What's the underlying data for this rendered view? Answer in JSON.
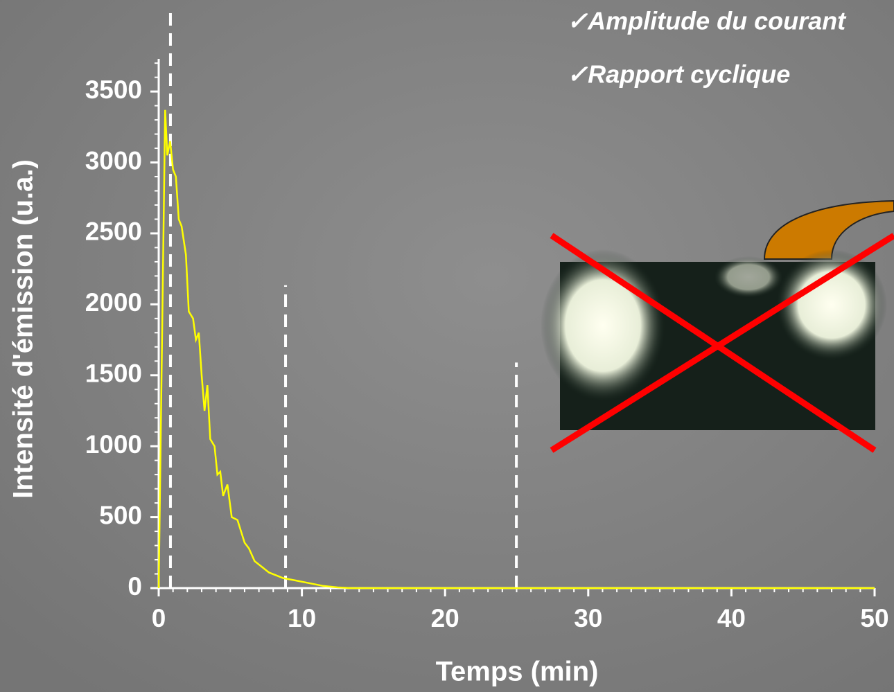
{
  "chart_data": {
    "type": "line",
    "annotations": [
      "✓Amplitude du courant",
      "✓Rapport cyclique"
    ],
    "xlabel": "Temps (min)",
    "ylabel": "Intensité d'émission (u.a.)",
    "x": [
      0,
      0.2,
      0.45,
      0.6,
      0.8,
      1.0,
      1.2,
      1.4,
      1.6,
      1.9,
      2.1,
      2.4,
      2.6,
      2.8,
      3.0,
      3.2,
      3.4,
      3.6,
      3.9,
      4.1,
      4.3,
      4.5,
      4.8,
      5.1,
      5.5,
      6.0,
      6.3,
      6.7,
      7.2,
      7.7,
      8.2,
      8.7,
      9.5,
      10.5,
      11.5,
      12.5,
      13.5,
      20,
      30,
      40,
      50
    ],
    "values": [
      0,
      1500,
      3370,
      3050,
      3150,
      2950,
      2900,
      2600,
      2550,
      2350,
      1950,
      1900,
      1750,
      1800,
      1500,
      1250,
      1430,
      1050,
      1000,
      800,
      820,
      650,
      730,
      500,
      480,
      320,
      280,
      190,
      150,
      110,
      90,
      70,
      55,
      35,
      15,
      5,
      0,
      0,
      0,
      0,
      0
    ],
    "color": "#ffff00",
    "xlim": [
      0,
      50
    ],
    "xticks": [
      0,
      10,
      20,
      30,
      40,
      50
    ],
    "xminor": 1,
    "ylim": [
      0,
      3730
    ],
    "yticks": [
      0,
      500,
      1000,
      1500,
      2000,
      2500,
      3000,
      3500
    ],
    "yminor": 100,
    "vlines": [
      {
        "x": 0.82,
        "top": 4090
      },
      {
        "x": 8.86,
        "top": 2135
      },
      {
        "x": 24.98,
        "top": 1590
      }
    ]
  }
}
